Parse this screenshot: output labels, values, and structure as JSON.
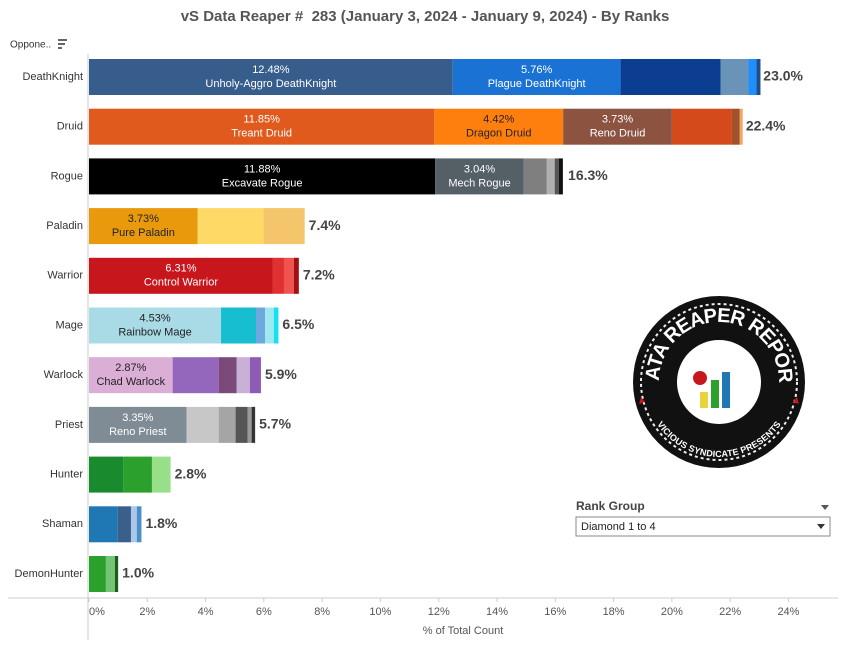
{
  "chart_data": {
    "type": "bar",
    "orientation": "horizontal",
    "stacked": true,
    "title": "vS Data Reaper #  283 (January 3, 2024 - January 9, 2024) - By Ranks",
    "x_label": "% of Total Count",
    "sort_label": "Oppone..",
    "xlim": [
      0,
      25.7
    ],
    "xticks": [
      {
        "value": 0,
        "label": "0%"
      },
      {
        "value": 2,
        "label": "2%"
      },
      {
        "value": 4,
        "label": "4%"
      },
      {
        "value": 6,
        "label": "6%"
      },
      {
        "value": 8,
        "label": "8%"
      },
      {
        "value": 10,
        "label": "10%"
      },
      {
        "value": 12,
        "label": "12%"
      },
      {
        "value": 14,
        "label": "14%"
      },
      {
        "value": 16,
        "label": "16%"
      },
      {
        "value": 18,
        "label": "18%"
      },
      {
        "value": 20,
        "label": "20%"
      },
      {
        "value": 22,
        "label": "22%"
      },
      {
        "value": 24,
        "label": "24%"
      }
    ],
    "bars": [
      {
        "category": "DeathKnight",
        "values": [
          12.48,
          5.76,
          3.43,
          0.96,
          0.27,
          0.14
        ],
        "value_labels": [
          "12.48%",
          "5.76%",
          null,
          null,
          null,
          null
        ],
        "names": [
          "Unholy-Aggro DeathKnight",
          "Plague DeathKnight",
          null,
          null,
          null,
          null
        ],
        "colors": [
          "#365d8c",
          "#1a72d4",
          "#0b3d91",
          "#6a93b8",
          "#1e8fff",
          "#1f4e8c"
        ],
        "total": 23.0,
        "total_label": "23.0%"
      },
      {
        "category": "Druid",
        "values": [
          11.85,
          4.42,
          3.73,
          2.06,
          0.27,
          0.1
        ],
        "value_labels": [
          "11.85%",
          "4.42%",
          "3.73%",
          null,
          null,
          null
        ],
        "names": [
          "Treant Druid",
          "Dragon Druid",
          "Reno Druid",
          null,
          null,
          null
        ],
        "colors": [
          "#e05a1e",
          "#ff7f0e",
          "#8c5340",
          "#d44a1a",
          "#a0522d",
          "#f4a460"
        ],
        "total": 22.4,
        "total_label": "22.4%"
      },
      {
        "category": "Rogue",
        "values": [
          11.88,
          3.04,
          0.79,
          0.27,
          0.14,
          0.14
        ],
        "value_labels": [
          "11.88%",
          "3.04%",
          null,
          null,
          null,
          null
        ],
        "names": [
          "Excavate Rogue",
          "Mech Rogue",
          null,
          null,
          null,
          null
        ],
        "colors": [
          "#000000",
          "#555f66",
          "#7f7f7f",
          "#b0b0b0",
          "#555555",
          "#111111"
        ],
        "total": 16.3,
        "total_label": "16.3%"
      },
      {
        "category": "Paladin",
        "values": [
          3.73,
          2.26,
          1.41
        ],
        "value_labels": [
          "3.73%",
          null,
          null
        ],
        "names": [
          "Pure Paladin",
          null,
          null
        ],
        "colors": [
          "#e89a0c",
          "#ffd966",
          "#f5c56b"
        ],
        "total": 7.4,
        "total_label": "7.4%"
      },
      {
        "category": "Warrior",
        "values": [
          6.31,
          0.38,
          0.34,
          0.17
        ],
        "value_labels": [
          "6.31%",
          null,
          null,
          null
        ],
        "names": [
          "Control Warrior",
          null,
          null,
          null
        ],
        "colors": [
          "#c8161d",
          "#e03030",
          "#f0524f",
          "#a01010"
        ],
        "total": 7.2,
        "total_label": "7.2%"
      },
      {
        "category": "Mage",
        "values": [
          4.53,
          1.2,
          0.31,
          0.3,
          0.16
        ],
        "value_labels": [
          "4.53%",
          null,
          null,
          null,
          null
        ],
        "names": [
          "Rainbow Mage",
          null,
          null,
          null,
          null
        ],
        "colors": [
          "#a8dbe6",
          "#17becf",
          "#6fa8dc",
          "#9fe8f2",
          "#17e0f0"
        ],
        "total": 6.5,
        "total_label": "6.5%"
      },
      {
        "category": "Warlock",
        "values": [
          2.87,
          1.58,
          0.62,
          0.45,
          0.38
        ],
        "value_labels": [
          "2.87%",
          null,
          null,
          null,
          null
        ],
        "names": [
          "Chad Warlock",
          null,
          null,
          null,
          null
        ],
        "colors": [
          "#dbaed6",
          "#9467bd",
          "#7b4a7a",
          "#c8b0d6",
          "#8e5bb5"
        ],
        "total": 5.9,
        "total_label": "5.9%"
      },
      {
        "category": "Priest",
        "values": [
          3.35,
          1.1,
          0.58,
          0.41,
          0.14,
          0.12
        ],
        "value_labels": [
          "3.35%",
          null,
          null,
          null,
          null,
          null
        ],
        "names": [
          "Reno Priest",
          null,
          null,
          null,
          null,
          null
        ],
        "colors": [
          "#7f8c95",
          "#c7c7c7",
          "#a5a5a5",
          "#555555",
          "#999999",
          "#333333"
        ],
        "total": 5.7,
        "total_label": "5.7%"
      },
      {
        "category": "Hunter",
        "values": [
          1.17,
          0.99,
          0.64
        ],
        "value_labels": [
          null,
          null,
          null
        ],
        "names": [
          null,
          null,
          null
        ],
        "colors": [
          "#1a8a2e",
          "#2ca02c",
          "#98df8a"
        ],
        "total": 2.8,
        "total_label": "2.8%"
      },
      {
        "category": "Shaman",
        "values": [
          0.99,
          0.45,
          0.2,
          0.16
        ],
        "value_labels": [
          null,
          null,
          null,
          null
        ],
        "names": [
          null,
          null,
          null,
          null
        ],
        "colors": [
          "#1f77b4",
          "#3a5f8a",
          "#aec7e8",
          "#4a90c8"
        ],
        "total": 1.8,
        "total_label": "1.8%"
      },
      {
        "category": "DemonHunter",
        "values": [
          0.58,
          0.31,
          0.11
        ],
        "value_labels": [
          null,
          null,
          null
        ],
        "names": [
          null,
          null,
          null
        ],
        "colors": [
          "#2ca02c",
          "#74c476",
          "#1a5e1a"
        ],
        "total": 1.0,
        "total_label": "1.0%"
      }
    ]
  },
  "controls": {
    "rank_group_label": "Rank Group",
    "rank_group_value": "Diamond 1 to 4"
  },
  "logo": {
    "title": "DATA REAPER REPORT",
    "subtitle": "VICIOUS SYNDICATE PRESENTS"
  }
}
